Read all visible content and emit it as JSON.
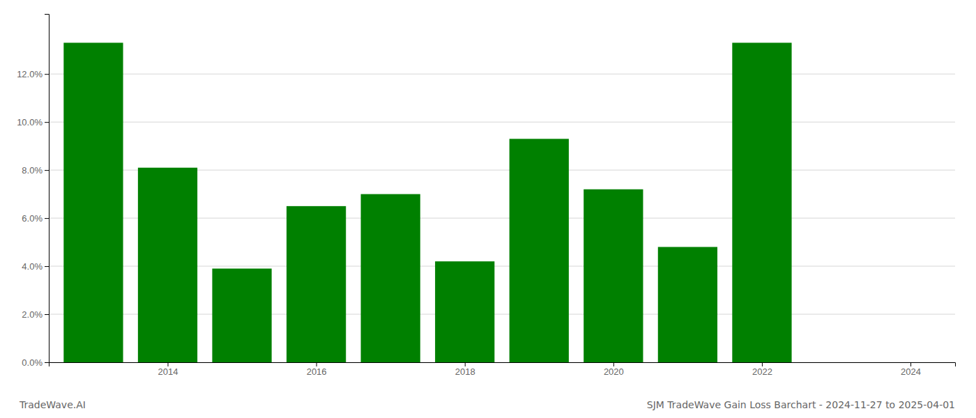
{
  "chart_data": {
    "type": "bar",
    "title": "SJM TradeWave Gain Loss Barchart - 2024-11-27 to 2025-04-01",
    "annotations": [
      "TradeWave.AI"
    ],
    "x": [
      2013,
      2014,
      2015,
      2016,
      2017,
      2018,
      2019,
      2020,
      2021,
      2022
    ],
    "values": [
      0.133,
      0.081,
      0.039,
      0.065,
      0.07,
      0.042,
      0.093,
      0.072,
      0.048,
      0.133
    ],
    "color": "#008000",
    "xlim": [
      2012.4,
      2024.6
    ],
    "xticks": [
      2014,
      2016,
      2018,
      2020,
      2022,
      2024
    ],
    "ylim": [
      0,
      0.145
    ],
    "yticks": [
      {
        "value": 0.0,
        "label": "0.0%"
      },
      {
        "value": 0.02,
        "label": "2.0%"
      },
      {
        "value": 0.04,
        "label": "4.0%"
      },
      {
        "value": 0.06,
        "label": "6.0%"
      },
      {
        "value": 0.08,
        "label": "8.0%"
      },
      {
        "value": 0.1,
        "label": "10.0%"
      },
      {
        "value": 0.12,
        "label": "12.0%"
      }
    ],
    "grid": true
  }
}
